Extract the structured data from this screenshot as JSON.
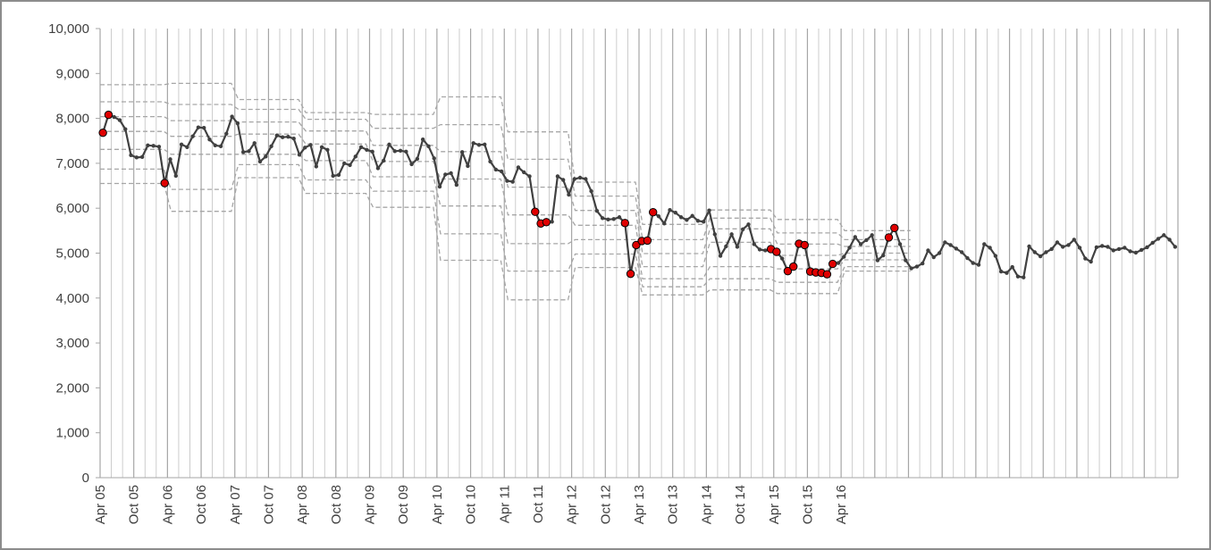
{
  "chart_data": {
    "type": "line",
    "title": "",
    "xlabel": "",
    "ylabel": "",
    "ylim": [
      0,
      10000
    ],
    "yticks": [
      "0",
      "1,000",
      "2,000",
      "3,000",
      "4,000",
      "5,000",
      "6,000",
      "7,000",
      "8,000",
      "9,000",
      "10,000"
    ],
    "x_start": "Apr 05",
    "x_tick_labels": [
      "Apr 05",
      "Oct 05",
      "Apr 06",
      "Oct 06",
      "Apr 07",
      "Oct 07",
      "Apr 08",
      "Oct 08",
      "Apr 09",
      "Oct 09",
      "Apr 10",
      "Oct 10",
      "Apr 11",
      "Oct 11",
      "Apr 12",
      "Oct 12",
      "Apr 13",
      "Oct 13",
      "Apr 14",
      "Oct 14",
      "Apr 15",
      "Oct 15",
      "Apr 16"
    ],
    "grid": "vertical",
    "legend": "none",
    "colors": {
      "line": "#404040",
      "point": "#404040",
      "highlight_fill": "#e00000",
      "highlight_stroke": "#000000",
      "control_band": "#a6a6a6",
      "gridline": "#bfbfbf",
      "gridline_major": "#a6a6a6"
    },
    "series": [
      {
        "values": [
          7680,
          8080,
          8030,
          7960,
          7760,
          7180,
          7130,
          7140,
          7400,
          7390,
          7370,
          6560,
          7090,
          6720,
          7420,
          7360,
          7600,
          7800,
          7790,
          7530,
          7400,
          7380,
          7660,
          8040,
          7890,
          7250,
          7270,
          7450,
          7040,
          7150,
          7380,
          7620,
          7580,
          7590,
          7550,
          7190,
          7350,
          7410,
          6930,
          7360,
          7300,
          6720,
          6740,
          7000,
          6960,
          7150,
          7360,
          7300,
          7260,
          6890,
          7060,
          7420,
          7270,
          7280,
          7260,
          6980,
          7100,
          7530,
          7380,
          7110,
          6480,
          6750,
          6780,
          6520,
          7250,
          6940,
          7450,
          7410,
          7420,
          7040,
          6860,
          6820,
          6610,
          6590,
          6910,
          6800,
          6710,
          5920,
          5660,
          5690,
          5700,
          6710,
          6630,
          6300,
          6650,
          6680,
          6650,
          6380,
          5940,
          5780,
          5750,
          5760,
          5800,
          5670,
          4540,
          5180,
          5270,
          5280,
          5910,
          5820,
          5660,
          5960,
          5900,
          5800,
          5740,
          5830,
          5720,
          5700,
          5950,
          5420,
          4940,
          5150,
          5420,
          5140,
          5530,
          5640,
          5200,
          5080,
          5060,
          5090,
          5030,
          4880,
          4600,
          4700,
          5210,
          5180,
          4590,
          4570,
          4560,
          4530,
          4760,
          4780,
          4920,
          5120,
          5360,
          5200,
          5290,
          5400,
          4840,
          4950,
          5350,
          5560,
          5200,
          4840,
          4660,
          4700,
          4770,
          5060,
          4910,
          5000,
          5240,
          5180,
          5100,
          5020,
          4890,
          4780,
          4740,
          5200,
          5120,
          4940,
          4590,
          4560,
          4690,
          4480,
          4460,
          5150,
          5020,
          4930,
          5020,
          5090,
          5240,
          5140,
          5180,
          5300,
          5120,
          4880,
          4810,
          5130,
          5160,
          5140,
          5060,
          5090,
          5120,
          5040,
          5010,
          5070,
          5130,
          5230,
          5320,
          5400,
          5300,
          5140
        ],
        "highlighted_indices": [
          0,
          1,
          11,
          77,
          78,
          79,
          93,
          94,
          95,
          96,
          97,
          98,
          119,
          120,
          122,
          123,
          124,
          125,
          126,
          127,
          128,
          129,
          130,
          140,
          141
        ]
      }
    ],
    "control_limits": {
      "description": "Dashed control bands per annual segment (center line and +/- limits)",
      "segments": [
        {
          "start": 0,
          "end": 11,
          "lines": [
            8750,
            8370,
            8040,
            7710,
            7310,
            6870,
            6550
          ]
        },
        {
          "start": 12,
          "end": 23,
          "lines": [
            8780,
            8310,
            7950,
            7600,
            7200,
            6420,
            5930
          ]
        },
        {
          "start": 24,
          "end": 35,
          "lines": [
            8420,
            8200,
            7920,
            7650,
            7200,
            6970,
            6680
          ]
        },
        {
          "start": 36,
          "end": 47,
          "lines": [
            8130,
            7980,
            7720,
            7430,
            7060,
            6630,
            6330
          ]
        },
        {
          "start": 48,
          "end": 59,
          "lines": [
            8090,
            7780,
            7400,
            7040,
            6700,
            6380,
            6020
          ]
        },
        {
          "start": 60,
          "end": 71,
          "lines": [
            8480,
            7860,
            7260,
            6650,
            6050,
            5430,
            4840
          ]
        },
        {
          "start": 72,
          "end": 83,
          "lines": [
            7700,
            7090,
            6470,
            5850,
            5210,
            4600,
            3960
          ]
        },
        {
          "start": 84,
          "end": 95,
          "lines": [
            6580,
            6270,
            5950,
            5620,
            5300,
            4980,
            4680
          ]
        },
        {
          "start": 96,
          "end": 107,
          "lines": [
            5640,
            5300,
            4990,
            4700,
            4430,
            4250,
            4070
          ]
        },
        {
          "start": 108,
          "end": 119,
          "lines": [
            5960,
            5780,
            5540,
            5240,
            4700,
            4430,
            4180
          ]
        },
        {
          "start": 120,
          "end": 131,
          "lines": [
            5750,
            5450,
            5200,
            4950,
            4650,
            4350,
            4100
          ]
        },
        {
          "start": 132,
          "end": 144,
          "lines": [
            5500,
            5300,
            5150,
            5000,
            4850,
            4700,
            4600
          ]
        }
      ]
    }
  }
}
